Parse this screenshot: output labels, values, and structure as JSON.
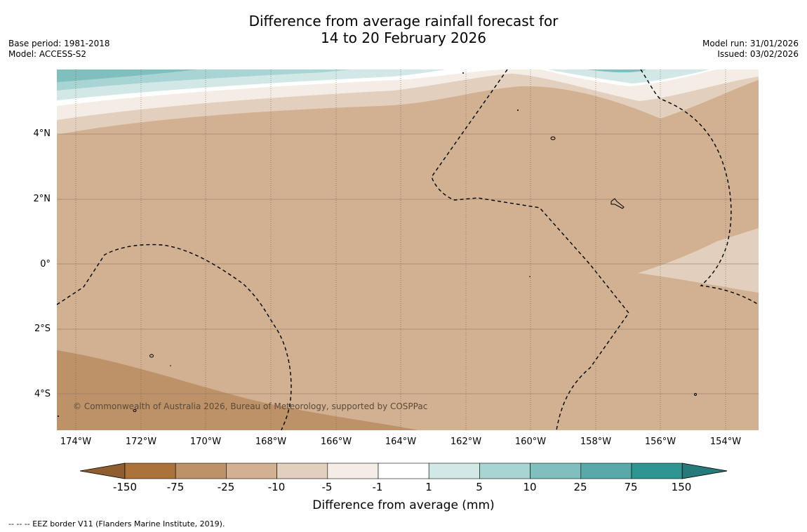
{
  "title": {
    "line1": "Difference from average rainfall forecast for",
    "line2": "14 to 20 February 2026"
  },
  "meta_left": {
    "base_period": "Base period: 1981-2018",
    "model": "Model: ACCESS-S2"
  },
  "meta_right": {
    "model_run": "Model run: 31/01/2026",
    "issued": "Issued: 03/02/2026"
  },
  "map": {
    "lat_labels": [
      "4°N",
      "2°N",
      "0°",
      "2°S",
      "4°S"
    ],
    "lon_labels": [
      "174°W",
      "172°W",
      "170°W",
      "168°W",
      "166°W",
      "164°W",
      "162°W",
      "160°W",
      "158°W",
      "156°W",
      "154°W"
    ],
    "copyright": "© Commonwealth of Australia 2026, Bureau of Meteorology, supported by COSPPac",
    "colors": {
      "dry_main": "#d1b192",
      "dry_strong": "#be9268",
      "dry_light": "#e2cfbd",
      "neutral_light": "#f3ede6",
      "wet_1": "#d2e8e7",
      "wet_2": "#a8d4d3",
      "wet_3": "#7fbfbd"
    }
  },
  "colorbar": {
    "ticks": [
      "-150",
      "-75",
      "-25",
      "-10",
      "-5",
      "-1",
      "1",
      "5",
      "10",
      "25",
      "75",
      "150"
    ],
    "colors": [
      "#ab733b",
      "#be9268",
      "#d1b192",
      "#e2cfbd",
      "#f3ede6",
      "#ffffff",
      "#d2e8e7",
      "#a8d4d3",
      "#7fbfbd",
      "#57aaa8",
      "#2f9593"
    ],
    "low_extend_color": "#8f5d2e",
    "high_extend_color": "#267a79",
    "label": "Difference from average (mm)"
  },
  "footnote": "--  --  -- EEZ border V11 (Flanders Marine Institute, 2019)."
}
